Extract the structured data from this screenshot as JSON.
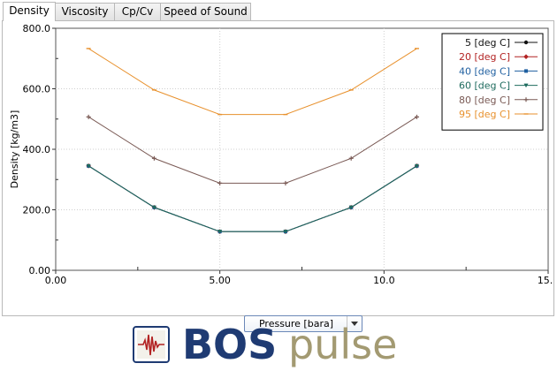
{
  "tabs": [
    {
      "label": "Density",
      "active": true
    },
    {
      "label": "Viscosity",
      "active": false
    },
    {
      "label": "Cp/Cv",
      "active": false
    },
    {
      "label": "Speed of Sound",
      "active": false
    }
  ],
  "x_axis_dropdown": {
    "selected": "Pressure [bara]"
  },
  "brand": {
    "part1": "BOS",
    "part2": "pulse",
    "part1_color": "#1f3b73",
    "part2_color": "#a39a72",
    "icon": "waveform-logo-icon"
  },
  "chart_data": {
    "type": "line",
    "ylabel": "Density [kg/m3]",
    "xlim": [
      0,
      15
    ],
    "ylim": [
      0,
      800
    ],
    "x_tick_labels": [
      "0.00",
      "5.00",
      "10.0",
      "15.0"
    ],
    "x_tick_values": [
      0,
      5,
      10,
      15
    ],
    "y_tick_labels": [
      "0.00",
      "200.0",
      "400.0",
      "600.0",
      "800.0"
    ],
    "y_tick_values": [
      0,
      200,
      400,
      600,
      800
    ],
    "grid": true,
    "legend_position": "top-right",
    "x": [
      1,
      3,
      5,
      7,
      9,
      11
    ],
    "series": [
      {
        "name": "5 [deg C]",
        "color": "#111111",
        "marker": "circle",
        "values": [
          345,
          208,
          128,
          128,
          208,
          345
        ]
      },
      {
        "name": "20 [deg C]",
        "color": "#b22222",
        "marker": "diamond",
        "values": [
          345,
          208,
          128,
          128,
          208,
          345
        ]
      },
      {
        "name": "40 [deg C]",
        "color": "#1f5fa0",
        "marker": "square",
        "values": [
          345,
          208,
          128,
          128,
          208,
          345
        ]
      },
      {
        "name": "60 [deg C]",
        "color": "#1e6b5e",
        "marker": "triangle",
        "values": [
          345,
          208,
          128,
          128,
          208,
          345
        ]
      },
      {
        "name": "80 [deg C]",
        "color": "#7a5a55",
        "marker": "plus",
        "values": [
          507,
          370,
          288,
          288,
          370,
          507
        ]
      },
      {
        "name": "95 [deg C]",
        "color": "#e8912d",
        "marker": "dash",
        "values": [
          733,
          596,
          515,
          515,
          596,
          733
        ]
      }
    ]
  }
}
